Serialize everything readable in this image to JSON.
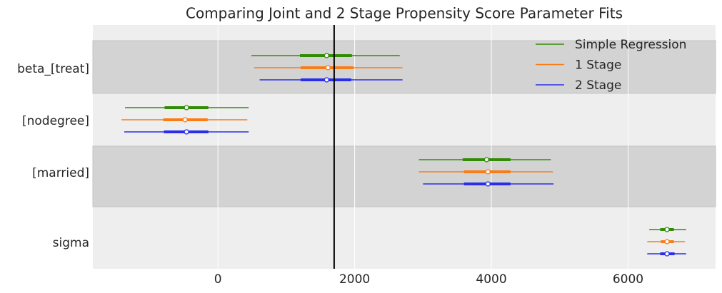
{
  "chart_data": {
    "type": "forest",
    "title": "Comparing Joint and 2 Stage Propensity Score Parameter Fits",
    "categories": [
      "beta_[treat]",
      "[nodegree]",
      "[married]",
      "sigma"
    ],
    "series": [
      {
        "name": "Simple Regression",
        "color": "#328c06",
        "values": [
          1590,
          -460,
          3930,
          6570
        ],
        "inner_interval": [
          [
            1200,
            1960
          ],
          [
            -780,
            -140
          ],
          [
            3580,
            4280
          ],
          [
            6470,
            6670
          ]
        ],
        "outer_interval": [
          [
            490,
            2660
          ],
          [
            -1360,
            450
          ],
          [
            2940,
            4870
          ],
          [
            6310,
            6850
          ]
        ]
      },
      {
        "name": "1 Stage",
        "color": "#fa7c17",
        "values": [
          1610,
          -480,
          3950,
          6570
        ],
        "inner_interval": [
          [
            1210,
            1980
          ],
          [
            -800,
            -150
          ],
          [
            3600,
            4280
          ],
          [
            6480,
            6670
          ]
        ],
        "outer_interval": [
          [
            530,
            2700
          ],
          [
            -1410,
            430
          ],
          [
            2940,
            4900
          ],
          [
            6280,
            6830
          ]
        ]
      },
      {
        "name": "2 Stage",
        "color": "#2a2eec",
        "values": [
          1590,
          -460,
          3950,
          6570
        ],
        "inner_interval": [
          [
            1210,
            1950
          ],
          [
            -790,
            -140
          ],
          [
            3600,
            4280
          ],
          [
            6470,
            6680
          ]
        ],
        "outer_interval": [
          [
            610,
            2700
          ],
          [
            -1370,
            450
          ],
          [
            3000,
            4910
          ],
          [
            6280,
            6850
          ]
        ]
      }
    ],
    "reference_line": 1700,
    "xlim": [
      -1830,
      7280
    ],
    "xticks": [
      0,
      2000,
      4000,
      6000
    ],
    "grid": true,
    "legend": "upper right"
  }
}
